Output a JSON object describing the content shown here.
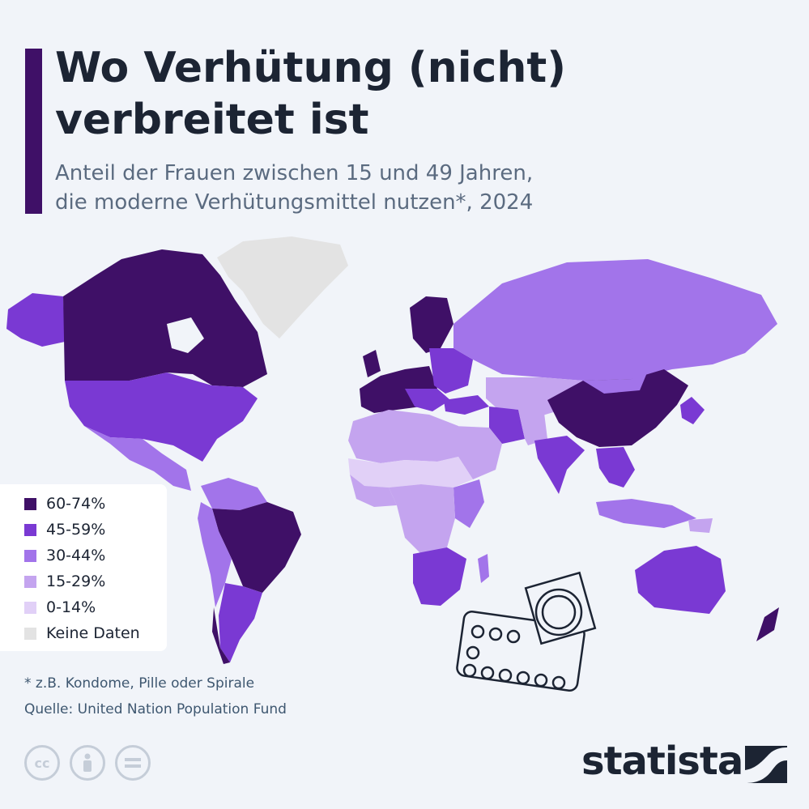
{
  "header": {
    "title": "Wo Verhütung (nicht) verbreitet ist",
    "subtitle_line1": "Anteil der Frauen zwischen 15 und 49 Jahren,",
    "subtitle_line2": "die moderne Verhütungsmittel nutzen*, 2024"
  },
  "legend": {
    "items": [
      {
        "label": "60-74%",
        "color": "#3f1067"
      },
      {
        "label": "45-59%",
        "color": "#7a39d3"
      },
      {
        "label": "30-44%",
        "color": "#a274ea"
      },
      {
        "label": "15-29%",
        "color": "#c4a4ef"
      },
      {
        "label": "0-14%",
        "color": "#e1d0f7"
      },
      {
        "label": "Keine Daten",
        "color": "#e3e3e3"
      }
    ]
  },
  "footer": {
    "footnote": "* z.B. Kondome, Pille oder Spirale",
    "source": "Quelle: United Nation Population Fund",
    "brand": "statista"
  },
  "icons": {
    "cc": "cc-icon",
    "attribution": "person-icon",
    "noderivs": "equals-icon",
    "illustration": "contraceptive-pills-condom-icon"
  }
}
